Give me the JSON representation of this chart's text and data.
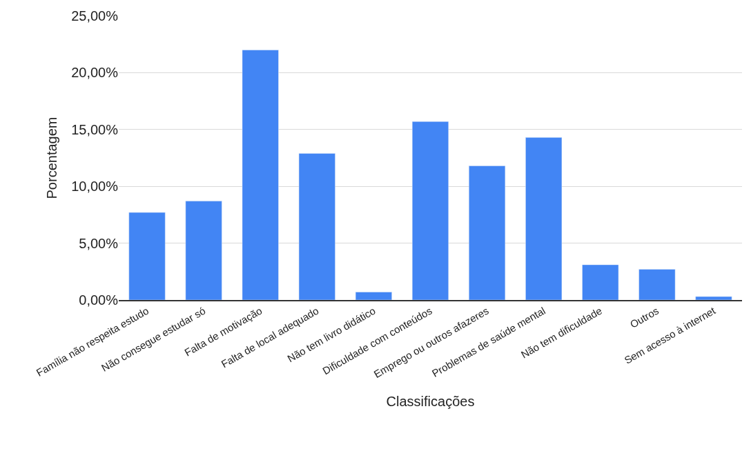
{
  "chart_data": {
    "type": "bar",
    "xlabel": "Classificações",
    "ylabel": "Porcentagem",
    "categories": [
      "Família não respeita estudo",
      "Não consegue estudar só",
      "Falta de motivação",
      "Falta de local adequado",
      "Não tem livro didático",
      "Dificuldade com conteúdos",
      "Emprego ou outros afazeres",
      "Problemas de saúde mental",
      "Não tem dificuldade",
      "Outros",
      "Sem acesso à internet"
    ],
    "values": [
      7.7,
      8.7,
      22.0,
      12.9,
      0.7,
      15.7,
      11.8,
      14.3,
      3.1,
      2.7,
      0.3
    ],
    "color": "#4285f4",
    "ylim": [
      0,
      25
    ],
    "yticks": [
      {
        "value": 0,
        "label": "0,00%"
      },
      {
        "value": 5,
        "label": "5,00%"
      },
      {
        "value": 10,
        "label": "10,00%"
      },
      {
        "value": 15,
        "label": "15,00%"
      },
      {
        "value": 20,
        "label": "20,00%"
      },
      {
        "value": 25,
        "label": "25,00%"
      }
    ],
    "grid": "y"
  }
}
